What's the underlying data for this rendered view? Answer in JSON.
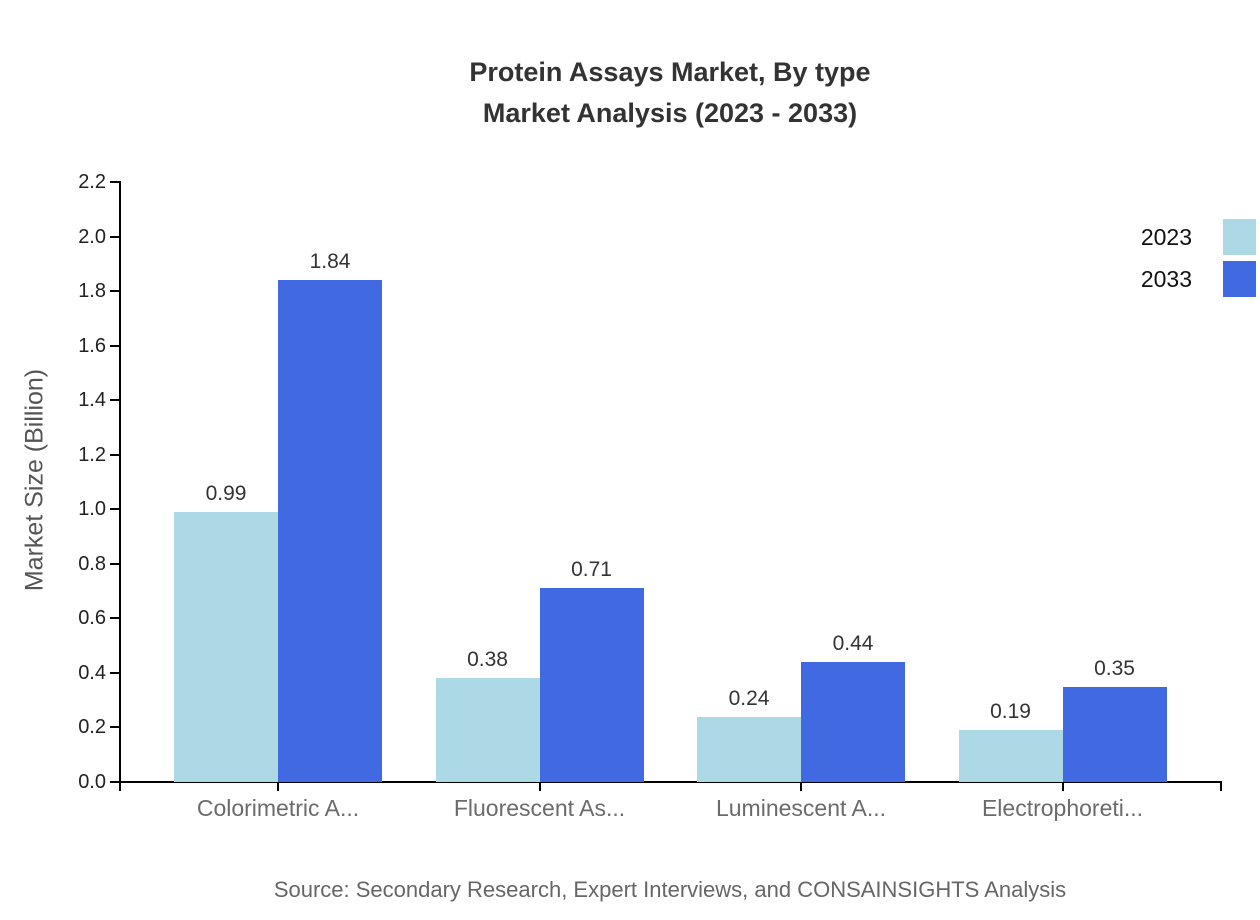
{
  "chart_data": {
    "type": "bar",
    "title": "Protein Assays Market, By type",
    "subtitle": "Market Analysis (2023 - 2033)",
    "categories": [
      "Colorimetric A...",
      "Fluorescent As...",
      "Luminescent A...",
      "Electrophoreti..."
    ],
    "series": [
      {
        "name": "2023",
        "color": "#ADD8E6",
        "values": [
          0.99,
          0.38,
          0.24,
          0.19
        ]
      },
      {
        "name": "2033",
        "color": "#4169E1",
        "values": [
          1.84,
          0.71,
          0.44,
          0.35
        ]
      }
    ],
    "xlabel": "",
    "ylabel": "Market Size (Billion)",
    "ylim": [
      0,
      2.2
    ],
    "ytick_step": 0.2,
    "grid": false,
    "legend_position": "top-right",
    "value_labels": true,
    "axis_color": "#000000",
    "title_color": "#333333",
    "tick_label_color": "#222222",
    "category_label_color": "#6b6b6b",
    "value_label_color": "#333333",
    "source": "Source: Secondary Research, Expert Interviews, and CONSAINSIGHTS Analysis"
  }
}
